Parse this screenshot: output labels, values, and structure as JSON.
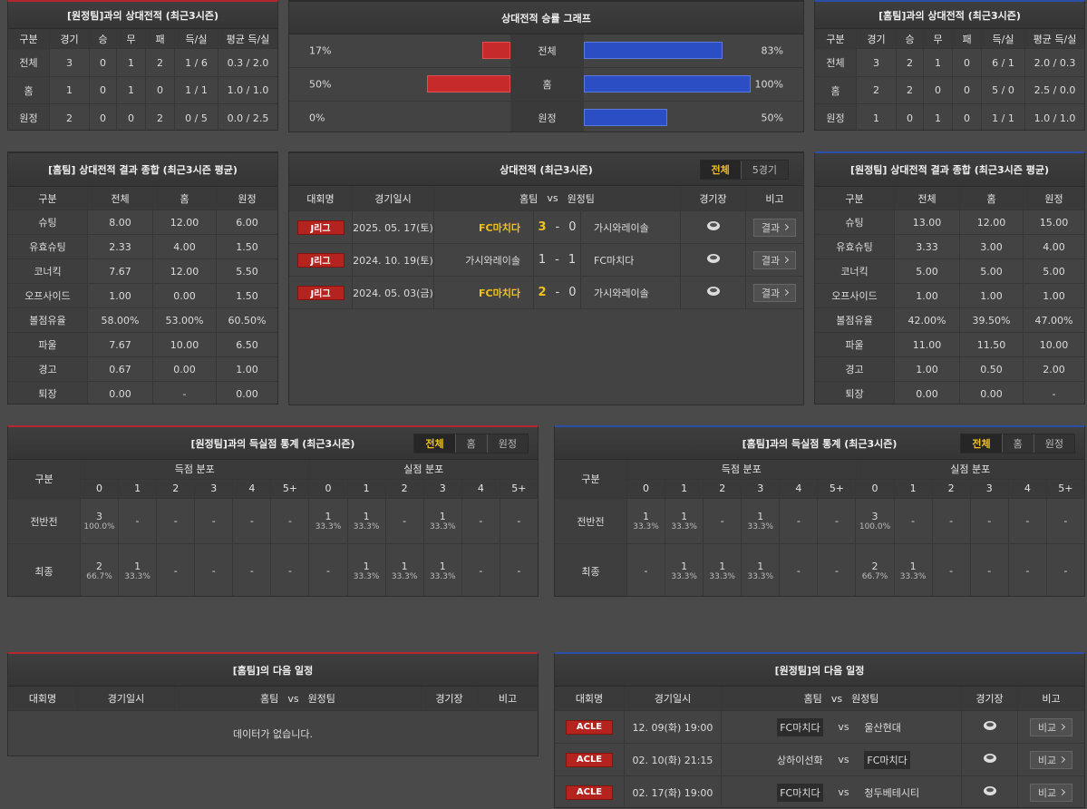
{
  "h2h_away": {
    "title": "[원정팀]과의 상대전적 (최근3시즌)",
    "headers": [
      "구분",
      "경기",
      "승",
      "무",
      "패",
      "득/실",
      "평균 득/실"
    ],
    "rows": [
      [
        "전체",
        "3",
        "0",
        "1",
        "2",
        "1 / 6",
        "0.3 / 2.0"
      ],
      [
        "홈",
        "1",
        "0",
        "1",
        "0",
        "1 / 1",
        "1.0 / 1.0"
      ],
      [
        "원정",
        "2",
        "0",
        "0",
        "2",
        "0 / 5",
        "0.0 / 2.5"
      ]
    ]
  },
  "win_graph": {
    "title": "상대전적 승률 그래프",
    "rows": [
      {
        "left": {
          "value": 17,
          "label": "17%"
        },
        "label": "전체",
        "right": {
          "value": 83,
          "label": "83%"
        }
      },
      {
        "left": {
          "value": 50,
          "label": "50%"
        },
        "label": "홈",
        "right": {
          "value": 100,
          "label": "100%"
        }
      },
      {
        "left": {
          "value": 0,
          "label": "0%"
        },
        "label": "원정",
        "right": {
          "value": 50,
          "label": "50%"
        }
      }
    ]
  },
  "h2h_home": {
    "title": "[홈팀]과의 상대전적 (최근3시즌)",
    "headers": [
      "구분",
      "경기",
      "승",
      "무",
      "패",
      "득/실",
      "평균 득/실"
    ],
    "rows": [
      [
        "전체",
        "3",
        "2",
        "1",
        "0",
        "6 / 1",
        "2.0 / 0.3"
      ],
      [
        "홈",
        "2",
        "2",
        "0",
        "0",
        "5 / 0",
        "2.5 / 0.0"
      ],
      [
        "원정",
        "1",
        "0",
        "1",
        "0",
        "1 / 1",
        "1.0 / 1.0"
      ]
    ]
  },
  "home_summary": {
    "title": "[홈팀] 상대전적 결과 종합 (최근3시즌 평균)",
    "headers": [
      "구분",
      "전체",
      "홈",
      "원정"
    ],
    "rows": [
      [
        "슈팅",
        "8.00",
        "12.00",
        "6.00"
      ],
      [
        "유효슈팅",
        "2.33",
        "4.00",
        "1.50"
      ],
      [
        "코너킥",
        "7.67",
        "12.00",
        "5.50"
      ],
      [
        "오프사이드",
        "1.00",
        "0.00",
        "1.50"
      ],
      [
        "볼점유율",
        "58.00%",
        "53.00%",
        "60.50%"
      ],
      [
        "파울",
        "7.67",
        "10.00",
        "6.50"
      ],
      [
        "경고",
        "0.67",
        "0.00",
        "1.00"
      ],
      [
        "퇴장",
        "0.00",
        "-",
        "0.00"
      ]
    ]
  },
  "h2h_matches": {
    "title": "상대전적 (최근3시즌)",
    "tabs": [
      "전체",
      "5경기"
    ],
    "headers": [
      "대회명",
      "경기일시",
      "홈팀",
      "vs",
      "원정팀",
      "경기장",
      "비고"
    ],
    "rows": [
      {
        "league": "J리그",
        "date": "2025. 05. 17(토)",
        "home": "FC마치다",
        "home_score": "3",
        "sep": "-",
        "away_score": "0",
        "away": "가시와레이솔",
        "winner": "home",
        "button": "결과"
      },
      {
        "league": "J리그",
        "date": "2024. 10. 19(토)",
        "home": "가시와레이솔",
        "home_score": "1",
        "sep": "-",
        "away_score": "1",
        "away": "FC마치다",
        "winner": "draw",
        "button": "결과"
      },
      {
        "league": "J리그",
        "date": "2024. 05. 03(금)",
        "home": "FC마치다",
        "home_score": "2",
        "sep": "-",
        "away_score": "0",
        "away": "가시와레이솔",
        "winner": "home",
        "button": "결과"
      }
    ]
  },
  "away_summary": {
    "title": "[원정팀] 상대전적 결과 종합 (최근3시즌 평균)",
    "headers": [
      "구분",
      "전체",
      "홈",
      "원정"
    ],
    "rows": [
      [
        "슈팅",
        "13.00",
        "12.00",
        "15.00"
      ],
      [
        "유효슈팅",
        "3.33",
        "3.00",
        "4.00"
      ],
      [
        "코너킥",
        "5.00",
        "5.00",
        "5.00"
      ],
      [
        "오프사이드",
        "1.00",
        "1.00",
        "1.00"
      ],
      [
        "볼점유율",
        "42.00%",
        "39.50%",
        "47.00%"
      ],
      [
        "파울",
        "11.00",
        "11.50",
        "10.00"
      ],
      [
        "경고",
        "1.00",
        "0.50",
        "2.00"
      ],
      [
        "퇴장",
        "0.00",
        "0.00",
        "-"
      ]
    ]
  },
  "away_goals": {
    "title": "[원정팀]과의 득실점 통계 (최근3시즌)",
    "tabs": [
      "전체",
      "홈",
      "원정"
    ],
    "col_label": "구분",
    "groups": [
      "득점 분포",
      "실점 분포"
    ],
    "buckets": [
      "0",
      "1",
      "2",
      "3",
      "4",
      "5+"
    ],
    "rows": [
      {
        "label": "전반전",
        "cells": [
          {
            "n": "3",
            "pct": "100.0%"
          },
          "-",
          "-",
          "-",
          "-",
          "-",
          {
            "n": "1",
            "pct": "33.3%"
          },
          {
            "n": "1",
            "pct": "33.3%"
          },
          "-",
          {
            "n": "1",
            "pct": "33.3%"
          },
          "-",
          "-"
        ]
      },
      {
        "label": "최종",
        "cells": [
          {
            "n": "2",
            "pct": "66.7%"
          },
          {
            "n": "1",
            "pct": "33.3%"
          },
          "-",
          "-",
          "-",
          "-",
          "-",
          {
            "n": "1",
            "pct": "33.3%"
          },
          {
            "n": "1",
            "pct": "33.3%"
          },
          {
            "n": "1",
            "pct": "33.3%"
          },
          "-",
          "-"
        ]
      }
    ]
  },
  "home_goals": {
    "title": "[홈팀]과의 득실점 통계 (최근3시즌)",
    "tabs": [
      "전체",
      "홈",
      "원정"
    ],
    "col_label": "구분",
    "groups": [
      "득점 분포",
      "실점 분포"
    ],
    "buckets": [
      "0",
      "1",
      "2",
      "3",
      "4",
      "5+"
    ],
    "rows": [
      {
        "label": "전반전",
        "cells": [
          {
            "n": "1",
            "pct": "33.3%"
          },
          {
            "n": "1",
            "pct": "33.3%"
          },
          "-",
          {
            "n": "1",
            "pct": "33.3%"
          },
          "-",
          "-",
          {
            "n": "3",
            "pct": "100.0%"
          },
          "-",
          "-",
          "-",
          "-",
          "-"
        ]
      },
      {
        "label": "최종",
        "cells": [
          "-",
          {
            "n": "1",
            "pct": "33.3%"
          },
          {
            "n": "1",
            "pct": "33.3%"
          },
          {
            "n": "1",
            "pct": "33.3%"
          },
          "-",
          "-",
          {
            "n": "2",
            "pct": "66.7%"
          },
          {
            "n": "1",
            "pct": "33.3%"
          },
          "-",
          "-",
          "-",
          "-"
        ]
      }
    ]
  },
  "home_next": {
    "title": "[홈팀]의 다음 일정",
    "headers": [
      "대회명",
      "경기일시",
      "홈팀",
      "vs",
      "원정팀",
      "경기장",
      "비고"
    ],
    "empty": "데이터가 없습니다."
  },
  "away_next": {
    "title": "[원정팀]의 다음 일정",
    "headers": [
      "대회명",
      "경기일시",
      "홈팀",
      "vs",
      "원정팀",
      "경기장",
      "비고"
    ],
    "rows": [
      {
        "league": "ACLE",
        "date": "12. 09(화) 19:00",
        "home": "FC마치다",
        "vs": "vs",
        "away": "울산현대",
        "highlight": "home",
        "button": "비교"
      },
      {
        "league": "ACLE",
        "date": "02. 10(화) 21:15",
        "home": "상하이선화",
        "vs": "vs",
        "away": "FC마치다",
        "highlight": "away",
        "button": "비교"
      },
      {
        "league": "ACLE",
        "date": "02. 17(화) 19:00",
        "home": "FC마치다",
        "vs": "vs",
        "away": "청두베테시티",
        "highlight": "home",
        "button": "비교"
      }
    ]
  }
}
